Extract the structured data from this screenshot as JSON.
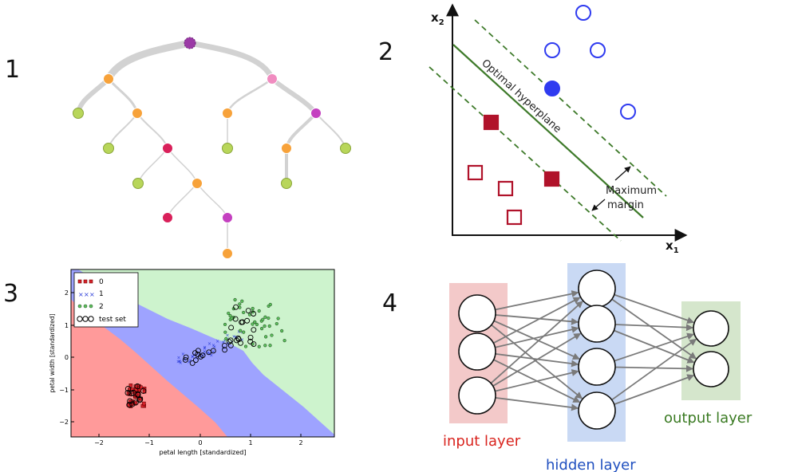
{
  "panels": [
    {
      "number": "1"
    },
    {
      "number": "2",
      "axis_x": "x",
      "axis_x_sub": "1",
      "axis_y": "x",
      "axis_y_sub": "2",
      "hyperplane_label": "Optimal hyperplane",
      "margin_label_line1": "Maximum",
      "margin_label_line2": "margin"
    },
    {
      "number": "3",
      "xlabel": "petal length [standardized]",
      "ylabel": "petal width [standardized]",
      "legend": [
        "0",
        "1",
        "2",
        "test set"
      ],
      "x_ticks": [
        "−2",
        "−1",
        "0",
        "1",
        "2"
      ],
      "y_ticks": [
        "2",
        "1",
        "0",
        "−1",
        "−2"
      ]
    },
    {
      "number": "4",
      "input_label": "input layer",
      "hidden_label": "hidden layer",
      "output_label": "output layer"
    }
  ],
  "colors": {
    "tree_orange": "#f7a23a",
    "tree_green": "#b8d65a",
    "tree_red": "#d9205a",
    "tree_pink": "#f08cc0",
    "tree_magenta": "#c440c0",
    "tree_purple": "#9b3aa6",
    "svm_blue": "#2f3bf0",
    "svm_red": "#b0122a",
    "svm_green": "#3e7a2a",
    "region_red": "#ff9a9a",
    "region_blue": "#9ea3ff",
    "region_green": "#cdf3cd",
    "nn_input": "#f3c9c9",
    "nn_hidden": "#c9d9f4",
    "nn_output": "#d5e6cc",
    "label_red": "#d9241e",
    "label_blue": "#1f4fbf",
    "label_green": "#3a7a22"
  }
}
